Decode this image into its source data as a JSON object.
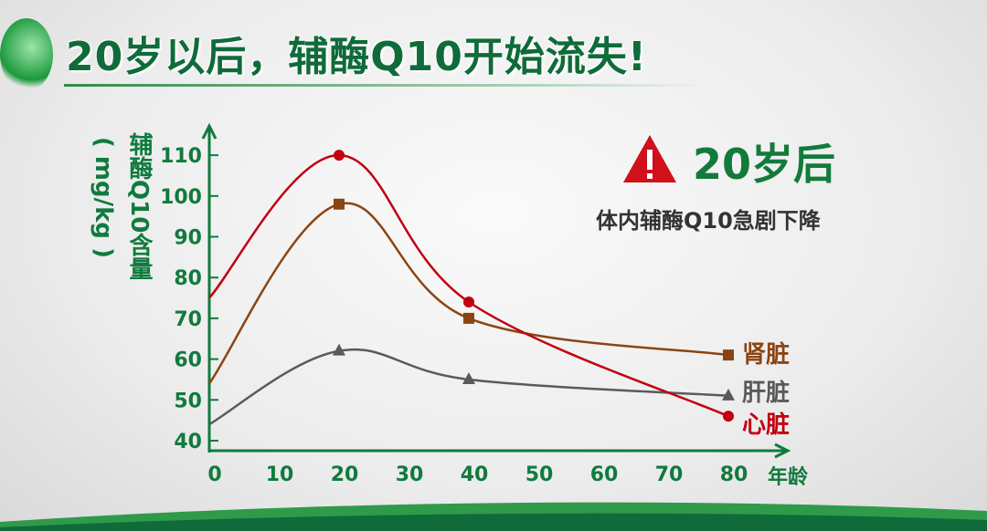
{
  "title": "20岁以后，辅酶Q10开始流失!",
  "callout": {
    "icon": "warning-triangle-icon",
    "headline": "20岁后",
    "subtext": "体内辅酶Q10急剧下降"
  },
  "chart_data": {
    "type": "line",
    "title": "",
    "xlabel": "年龄",
    "ylabel": "辅酶Q10含量",
    "ylabel_unit": "( mg/kg )",
    "xlim": [
      0,
      80
    ],
    "ylim": [
      40,
      110
    ],
    "xticks": [
      0,
      10,
      20,
      30,
      40,
      50,
      60,
      70,
      80
    ],
    "yticks": [
      40,
      50,
      60,
      70,
      80,
      90,
      100,
      110
    ],
    "grid": false,
    "legend_placement": "right, at line ends",
    "series": [
      {
        "name": "肾脏",
        "color": "#8b4513",
        "marker": "square",
        "x": [
          0,
          20,
          40,
          80
        ],
        "y": [
          54,
          98,
          70,
          61
        ]
      },
      {
        "name": "肝脏",
        "color": "#5a5a5a",
        "marker": "triangle",
        "x": [
          0,
          20,
          40,
          80
        ],
        "y": [
          44,
          62,
          55,
          51
        ]
      },
      {
        "name": "心脏",
        "color": "#c00010",
        "marker": "circle",
        "x": [
          0,
          20,
          40,
          80
        ],
        "y": [
          75,
          110,
          74,
          46
        ]
      }
    ]
  },
  "colors": {
    "axis": "#117a3e",
    "title": "#0f6b3a",
    "warning": "#d0101a"
  }
}
